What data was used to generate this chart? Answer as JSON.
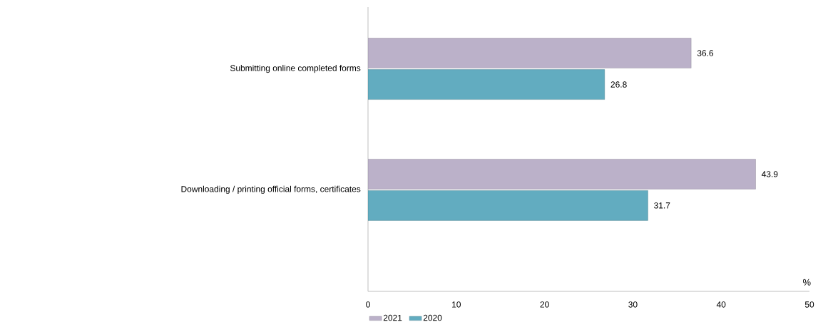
{
  "chart_data": {
    "type": "bar",
    "orientation": "horizontal",
    "xlabel": "%",
    "categories": [
      "Submitting online completed forms",
      "Downloading / printing official forms, certificates"
    ],
    "series": [
      {
        "name": "2021",
        "color": "#bbb1c9",
        "values": [
          36.6,
          43.9
        ]
      },
      {
        "name": "2020",
        "color": "#62acc0",
        "values": [
          26.8,
          31.7
        ]
      }
    ],
    "xlim": [
      0,
      50
    ],
    "xticks": [
      0,
      10,
      20,
      30,
      40,
      50
    ],
    "data_labels": true,
    "legend": "bottom",
    "grid": false
  }
}
